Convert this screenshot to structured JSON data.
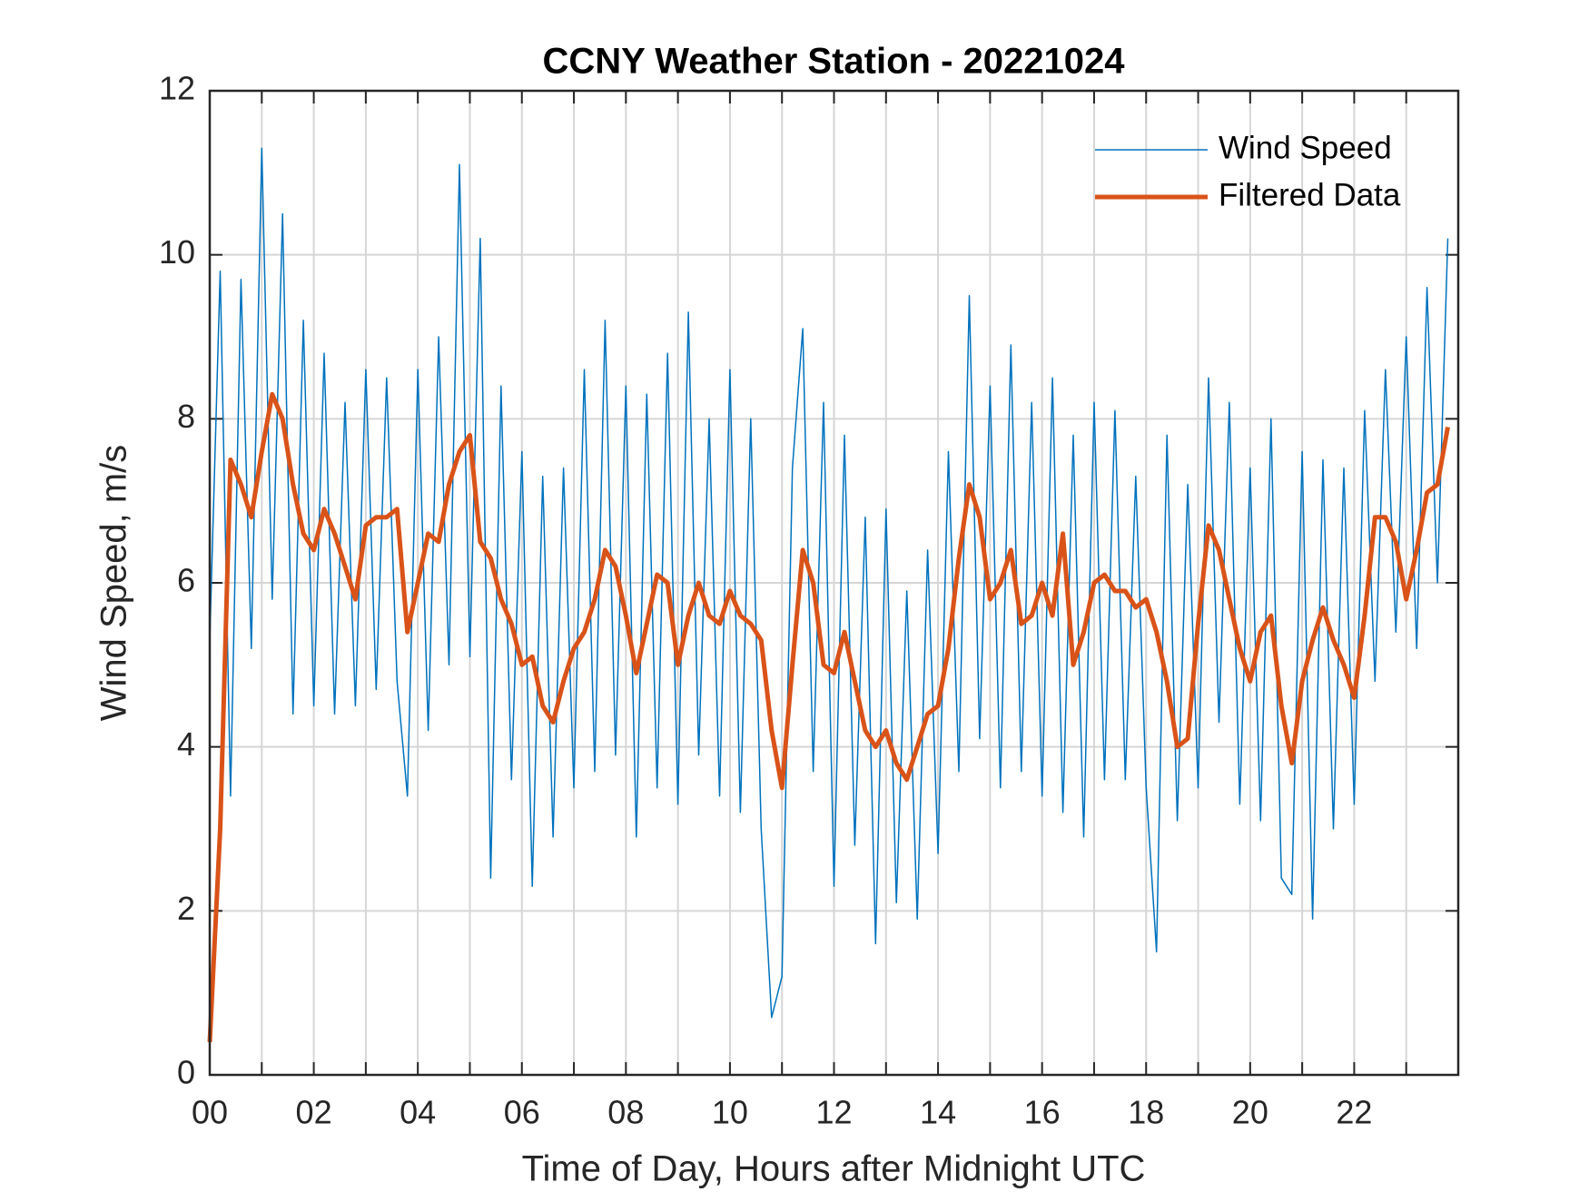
{
  "chart_data": {
    "type": "line",
    "title": "CCNY Weather Station - 20221024",
    "xlabel": "Time of Day, Hours after Midnight UTC",
    "ylabel": "Wind Speed, m/s",
    "x": [
      0,
      0.2,
      0.4,
      0.6,
      0.8,
      1,
      1.2,
      1.4,
      1.6,
      1.8,
      2,
      2.2,
      2.4,
      2.6,
      2.8,
      3,
      3.2,
      3.4,
      3.6,
      3.8,
      4,
      4.2,
      4.4,
      4.6,
      4.8,
      5,
      5.2,
      5.4,
      5.6,
      5.8,
      6,
      6.2,
      6.4,
      6.6,
      6.8,
      7,
      7.2,
      7.4,
      7.6,
      7.8,
      8,
      8.2,
      8.4,
      8.6,
      8.8,
      9,
      9.2,
      9.4,
      9.6,
      9.8,
      10,
      10.2,
      10.4,
      10.6,
      10.8,
      11,
      11.2,
      11.4,
      11.6,
      11.8,
      12,
      12.2,
      12.4,
      12.6,
      12.8,
      13,
      13.2,
      13.4,
      13.6,
      13.8,
      14,
      14.2,
      14.4,
      14.6,
      14.8,
      15,
      15.2,
      15.4,
      15.6,
      15.8,
      16,
      16.2,
      16.4,
      16.6,
      16.8,
      17,
      17.2,
      17.4,
      17.6,
      17.8,
      18,
      18.2,
      18.4,
      18.6,
      18.8,
      19,
      19.2,
      19.4,
      19.6,
      19.8,
      20,
      20.2,
      20.4,
      20.6,
      20.8,
      21,
      21.2,
      21.4,
      21.6,
      21.8,
      22,
      22.2,
      22.4,
      22.6,
      22.8,
      23,
      23.2,
      23.4,
      23.6,
      23.8
    ],
    "series": [
      {
        "name": "Wind Speed",
        "color": "#0072bd",
        "width": 1.5,
        "values": [
          5.3,
          9.8,
          3.4,
          9.7,
          5.2,
          11.3,
          5.8,
          10.5,
          4.4,
          9.2,
          4.5,
          8.8,
          4.4,
          8.2,
          4.5,
          8.6,
          4.7,
          8.5,
          4.8,
          3.4,
          8.6,
          4.2,
          9.0,
          5.0,
          11.1,
          5.1,
          10.2,
          2.4,
          8.4,
          3.6,
          7.6,
          2.3,
          7.3,
          2.9,
          7.4,
          3.5,
          8.6,
          3.7,
          9.2,
          3.9,
          8.4,
          2.9,
          8.3,
          3.5,
          8.8,
          3.3,
          9.3,
          3.9,
          8.0,
          3.4,
          8.6,
          3.2,
          8.0,
          3.0,
          0.7,
          1.2,
          7.4,
          9.1,
          3.7,
          8.2,
          2.3,
          7.8,
          2.8,
          6.8,
          1.6,
          6.9,
          2.1,
          5.9,
          1.9,
          6.4,
          2.7,
          7.6,
          3.7,
          9.5,
          4.1,
          8.4,
          3.5,
          8.9,
          3.7,
          8.2,
          3.4,
          8.5,
          3.2,
          7.8,
          2.9,
          8.2,
          3.6,
          8.1,
          3.6,
          7.3,
          3.5,
          1.5,
          7.8,
          3.1,
          7.2,
          3.5,
          8.5,
          4.3,
          8.2,
          3.3,
          7.4,
          3.1,
          8.0,
          2.4,
          2.2,
          7.6,
          1.9,
          7.5,
          3.0,
          7.4,
          3.3,
          8.1,
          4.8,
          8.6,
          5.4,
          9.0,
          5.2,
          9.6,
          6.0,
          10.2
        ]
      },
      {
        "name": "Filtered Data",
        "color": "#d95319",
        "width": 5,
        "values": [
          0.4,
          3,
          7.5,
          7.2,
          6.8,
          7.6,
          8.3,
          8.0,
          7.2,
          6.6,
          6.4,
          6.9,
          6.6,
          6.2,
          5.8,
          6.7,
          6.8,
          6.8,
          6.9,
          5.4,
          6.0,
          6.6,
          6.5,
          7.2,
          7.6,
          7.8,
          6.5,
          6.3,
          5.8,
          5.5,
          5.0,
          5.1,
          4.5,
          4.3,
          4.8,
          5.2,
          5.4,
          5.8,
          6.4,
          6.2,
          5.6,
          4.9,
          5.5,
          6.1,
          6.0,
          5.0,
          5.6,
          6.0,
          5.6,
          5.5,
          5.9,
          5.6,
          5.5,
          5.3,
          4.2,
          3.5,
          5.0,
          6.4,
          6.0,
          5.0,
          4.9,
          5.4,
          4.8,
          4.2,
          4.0,
          4.2,
          3.8,
          3.6,
          4.0,
          4.4,
          4.5,
          5.2,
          6.3,
          7.2,
          6.8,
          5.8,
          6.0,
          6.4,
          5.5,
          5.6,
          6.0,
          5.6,
          6.6,
          5.0,
          5.4,
          6.0,
          6.1,
          5.9,
          5.9,
          5.7,
          5.8,
          5.4,
          4.8,
          4.0,
          4.1,
          5.5,
          6.7,
          6.4,
          5.8,
          5.2,
          4.8,
          5.4,
          5.6,
          4.5,
          3.8,
          4.8,
          5.3,
          5.7,
          5.3,
          5.0,
          4.6,
          5.6,
          6.8,
          6.8,
          6.5,
          5.8,
          6.4,
          7.1,
          7.2,
          7.9
        ]
      }
    ],
    "xlim": [
      0,
      24
    ],
    "ylim": [
      0,
      12
    ],
    "xticks": [
      {
        "value": 0,
        "label": "00"
      },
      {
        "value": 2,
        "label": "02"
      },
      {
        "value": 4,
        "label": "04"
      },
      {
        "value": 6,
        "label": "06"
      },
      {
        "value": 8,
        "label": "08"
      },
      {
        "value": 10,
        "label": "10"
      },
      {
        "value": 12,
        "label": "12"
      },
      {
        "value": 14,
        "label": "14"
      },
      {
        "value": 16,
        "label": "16"
      },
      {
        "value": 18,
        "label": "18"
      },
      {
        "value": 20,
        "label": "20"
      },
      {
        "value": 22,
        "label": "22"
      }
    ],
    "minor_xticks": [
      1,
      3,
      5,
      7,
      9,
      11,
      13,
      15,
      17,
      19,
      21,
      23
    ],
    "yticks": [
      0,
      2,
      4,
      6,
      8,
      10,
      12
    ],
    "grid": true,
    "legend": "upper-right"
  }
}
